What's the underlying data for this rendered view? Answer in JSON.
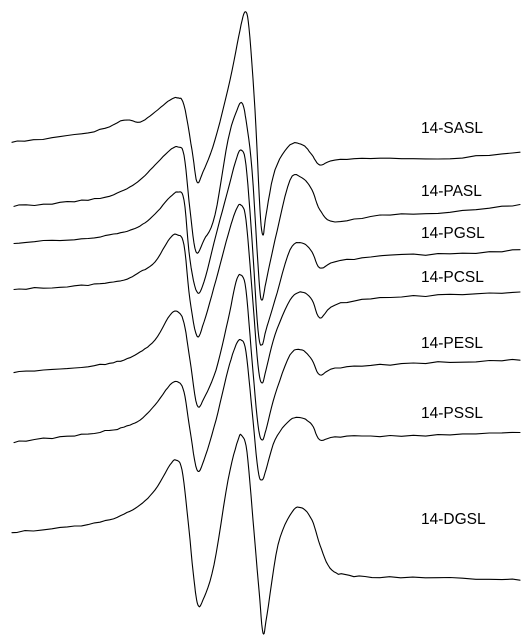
{
  "chart_data": {
    "type": "line",
    "title": "",
    "xlabel": "",
    "ylabel": "",
    "grid": false,
    "axes_visible": false,
    "legend": "none",
    "series_labels_placement": "right end of each trace",
    "line_color": "#000000",
    "background_color": "#ffffff",
    "series": [
      {
        "name": "14-SASL"
      },
      {
        "name": "14-PASL"
      },
      {
        "name": "14-PGSL"
      },
      {
        "name": "14-PCSL"
      },
      {
        "name": "14-PESL"
      },
      {
        "name": "14-PSSL"
      },
      {
        "name": "14-DGSL"
      }
    ]
  }
}
